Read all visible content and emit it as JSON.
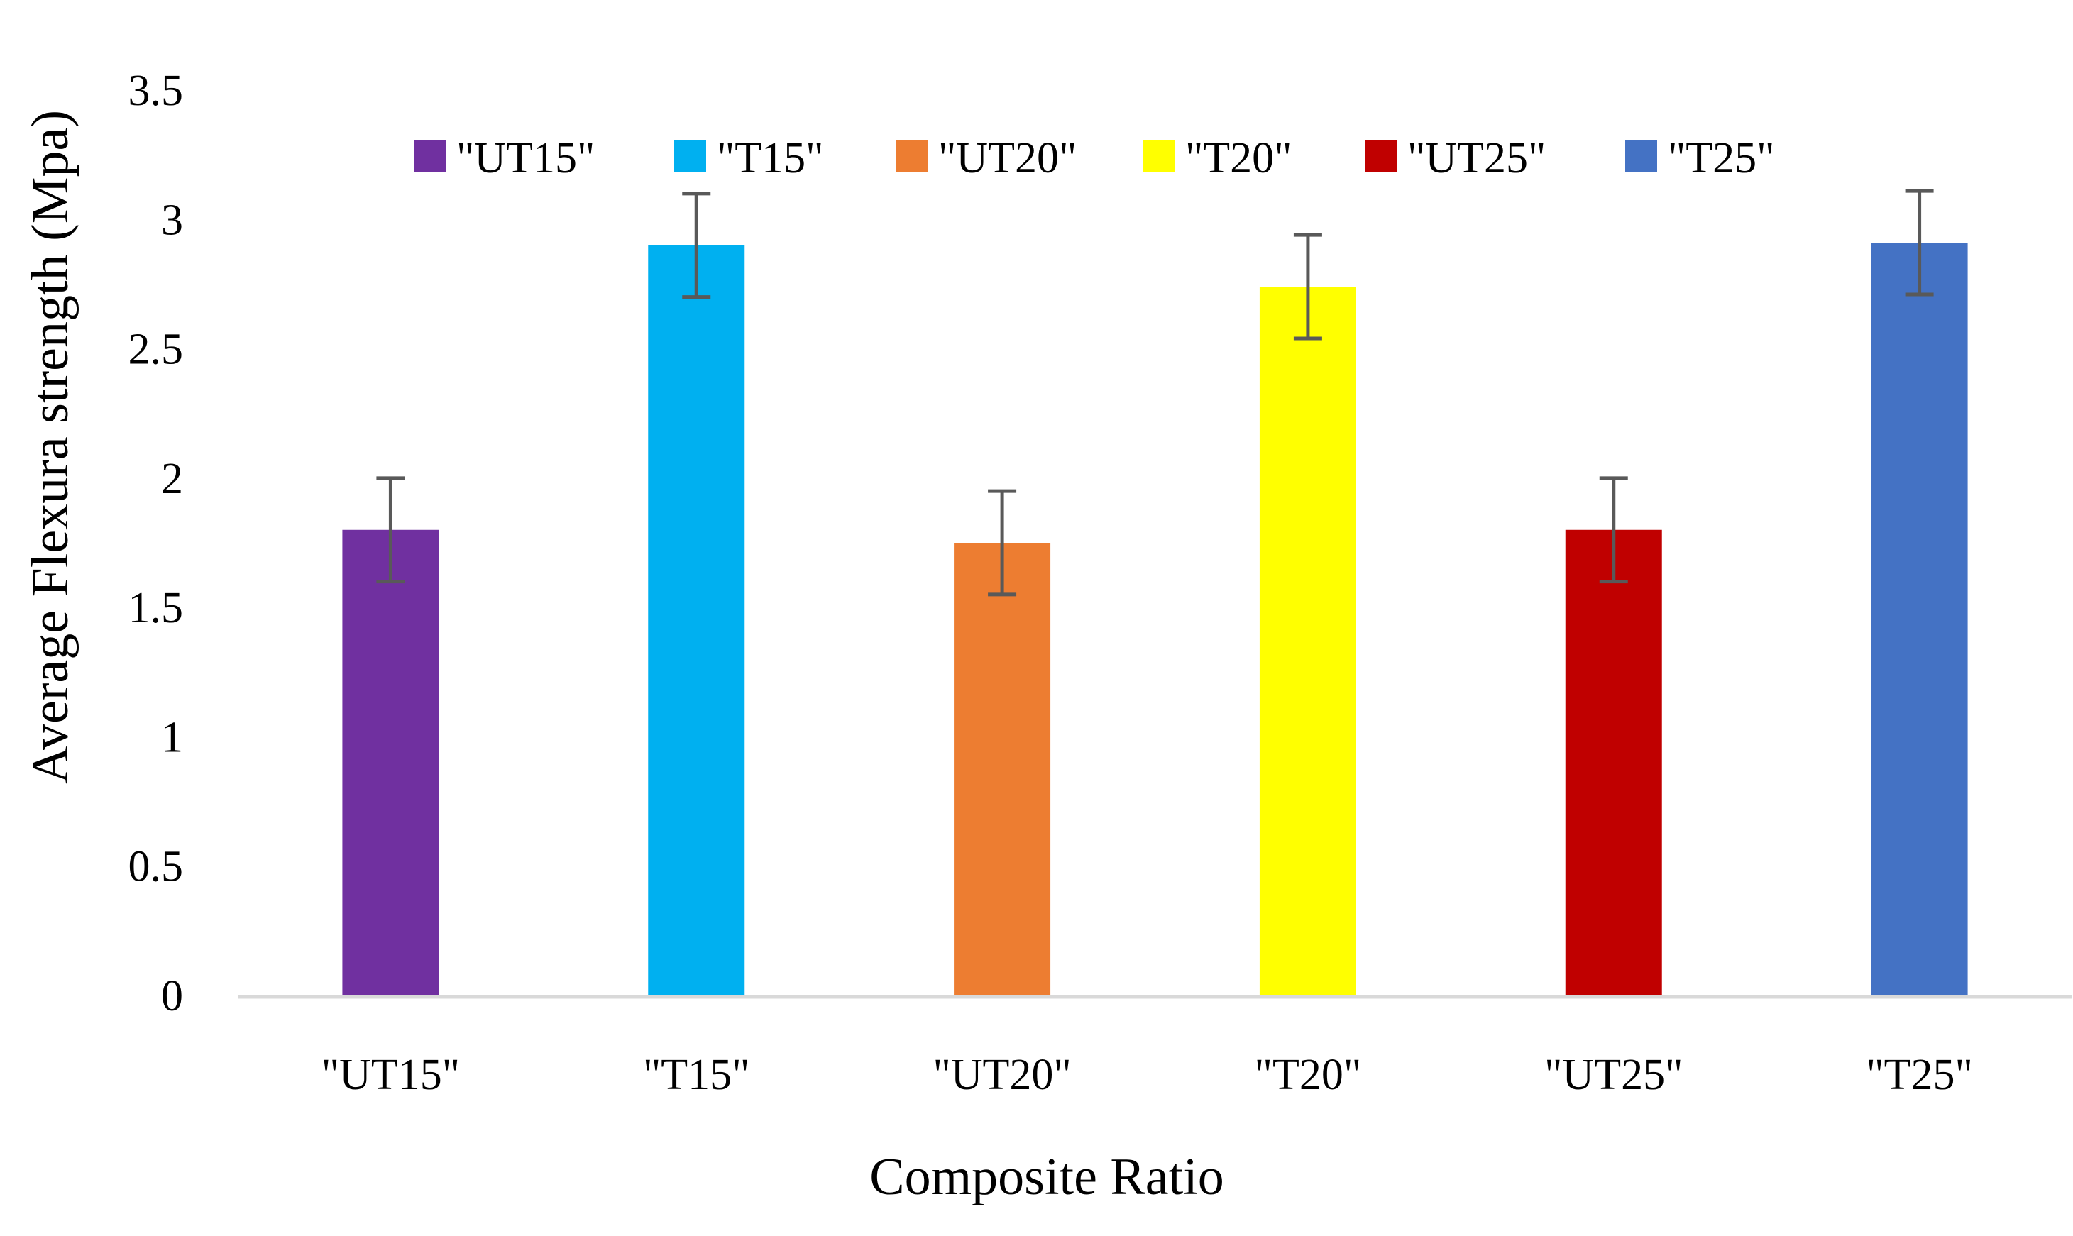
{
  "chart_data": {
    "type": "bar",
    "title": "",
    "xlabel": "Composite Ratio",
    "ylabel": "Average Flexura strength  (Mpa)",
    "categories": [
      "\"UT15\"",
      "\"T15\"",
      "\"UT20\"",
      "\"T20\"",
      "\"UT25\"",
      "\"T25\""
    ],
    "values": [
      1.8,
      2.9,
      1.75,
      2.74,
      1.8,
      2.91
    ],
    "error": [
      0.2,
      0.2,
      0.2,
      0.2,
      0.2,
      0.2
    ],
    "colors": [
      "#7030a0",
      "#00b0f0",
      "#ed7d31",
      "#ffff00",
      "#c00000",
      "#4472c4"
    ],
    "ylim": [
      0,
      3.5
    ],
    "yticks": [
      0,
      0.5,
      1,
      1.5,
      2,
      2.5,
      3,
      3.5
    ],
    "ytick_labels": [
      "0",
      "0.5",
      "1",
      "1.5",
      "2",
      "2.5",
      "3",
      "3.5"
    ],
    "grid": false,
    "legend_position": "top",
    "legend": [
      {
        "label": "\"UT15\"",
        "color": "#7030a0"
      },
      {
        "label": "\"T15\"",
        "color": "#00b0f0"
      },
      {
        "label": "\"UT20\"",
        "color": "#ed7d31"
      },
      {
        "label": "\"T20\"",
        "color": "#ffff00"
      },
      {
        "label": "\"UT25\"",
        "color": "#c00000"
      },
      {
        "label": "\"T25\"",
        "color": "#4472c4"
      }
    ],
    "axis_color": "#d9d9d9",
    "error_bar_color": "#595959"
  }
}
